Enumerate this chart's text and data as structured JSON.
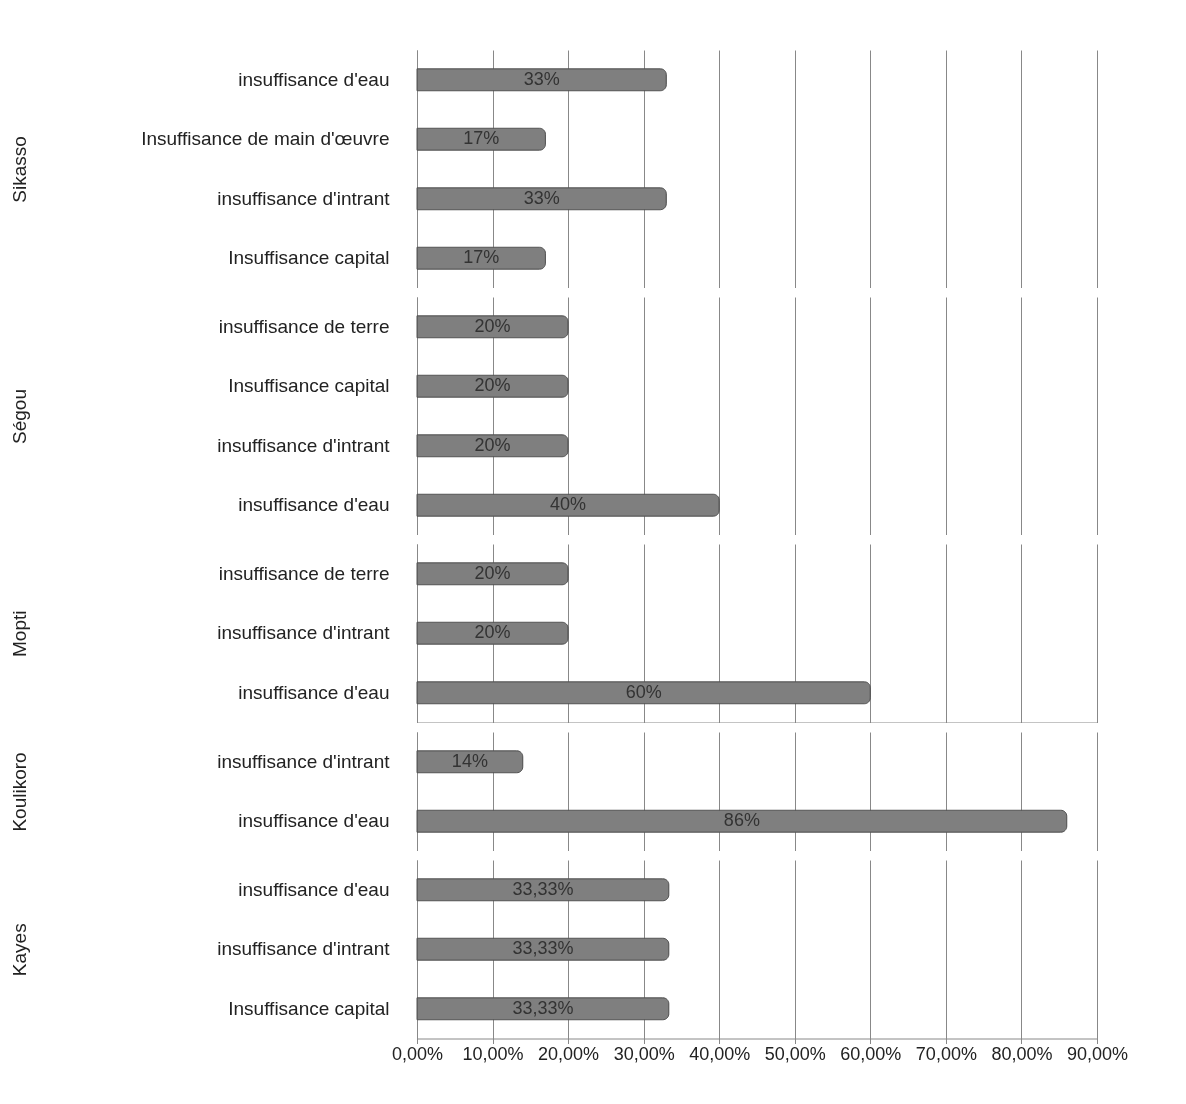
{
  "chart_data": [
    {
      "type": "bar",
      "orientation": "horizontal",
      "ylabel": "Sikasso",
      "categories": [
        "insuffisance d'eau",
        "Insuffisance de main d'œuvre",
        "insuffisance d'intrant",
        "Insuffisance capital"
      ],
      "values": [
        33,
        17,
        33,
        17
      ],
      "value_labels": [
        "33%",
        "17%",
        "33%",
        "17%"
      ],
      "color": "#7f7f7f",
      "xlim": [
        0,
        90
      ],
      "xticks": [
        0,
        10,
        20,
        30,
        40,
        50,
        60,
        70,
        80,
        90
      ],
      "grid": "x",
      "tick_labels": "y"
    },
    {
      "type": "bar",
      "orientation": "horizontal",
      "ylabel": "Ségou",
      "categories": [
        "insuffisance de terre",
        "Insuffisance capital",
        "insuffisance d'intrant",
        "insuffisance d'eau"
      ],
      "values": [
        20,
        20,
        20,
        40
      ],
      "value_labels": [
        "20%",
        "20%",
        "20%",
        "40%"
      ],
      "color": "#7f7f7f",
      "xlim": [
        0,
        90
      ],
      "xticks": [
        0,
        10,
        20,
        30,
        40,
        50,
        60,
        70,
        80,
        90
      ],
      "grid": "x",
      "tick_labels": "y"
    },
    {
      "type": "bar",
      "orientation": "horizontal",
      "ylabel": "Mopti",
      "categories": [
        "insuffisance de terre",
        "insuffisance d'intrant",
        "insuffisance d'eau"
      ],
      "values": [
        20,
        20,
        60
      ],
      "value_labels": [
        "20%",
        "20%",
        "60%"
      ],
      "color": "#7f7f7f",
      "xlim": [
        0,
        90
      ],
      "xticks": [
        0,
        10,
        20,
        30,
        40,
        50,
        60,
        70,
        80,
        90
      ],
      "grid": "x",
      "tick_labels": "y"
    },
    {
      "type": "bar",
      "orientation": "horizontal",
      "ylabel": "Koulikoro",
      "categories": [
        "insuffisance d'intrant",
        "insuffisance d'eau"
      ],
      "values": [
        14,
        86
      ],
      "value_labels": [
        "14%",
        "86%"
      ],
      "color": "#7f7f7f",
      "xlim": [
        0,
        90
      ],
      "xticks": [
        0,
        10,
        20,
        30,
        40,
        50,
        60,
        70,
        80,
        90
      ],
      "grid": "x",
      "tick_labels": "y"
    },
    {
      "type": "bar",
      "orientation": "horizontal",
      "ylabel": "Kayes",
      "categories": [
        "insuffisance d'eau",
        "insuffisance d'intrant",
        "Insuffisance capital"
      ],
      "values": [
        33.33,
        33.33,
        33.33
      ],
      "value_labels": [
        "33,33%",
        "33,33%",
        "33,33%"
      ],
      "color": "#7f7f7f",
      "xlim": [
        0,
        90
      ],
      "xticks": [
        {
          "value": 0,
          "label": "0,00%"
        },
        {
          "value": 10,
          "label": "10,00%"
        },
        {
          "value": 20,
          "label": "20,00%"
        },
        {
          "value": 30,
          "label": "30,00%"
        },
        {
          "value": 40,
          "label": "40,00%"
        },
        {
          "value": 50,
          "label": "50,00%"
        },
        {
          "value": 60,
          "label": "60,00%"
        },
        {
          "value": 70,
          "label": "70,00%"
        },
        {
          "value": 80,
          "label": "80,00%"
        },
        {
          "value": 90,
          "label": "90,00%"
        }
      ],
      "grid": "x"
    }
  ]
}
